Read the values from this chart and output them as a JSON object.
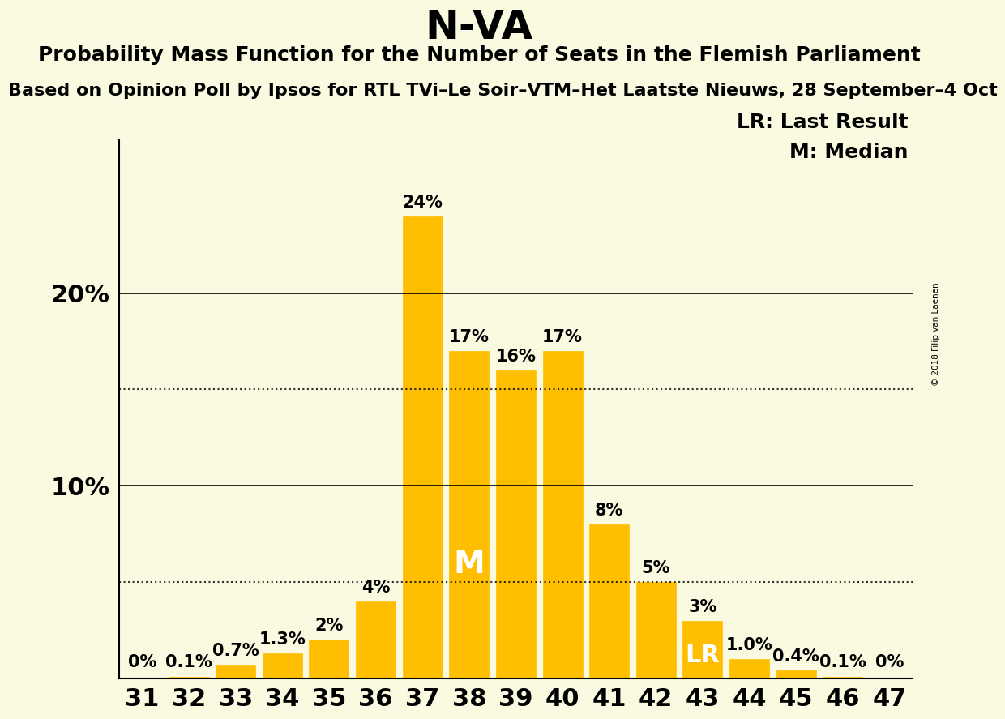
{
  "title": "N-VA",
  "subtitle": "Probability Mass Function for the Number of Seats in the Flemish Parliament",
  "subtitle2": "Based on Opinion Poll by Ipsos for RTL TVi–Le Soir–VTM–Het Laatste Nieuws, 28 September–4 Oct",
  "copyright": "© 2018 Filip van Laenen",
  "categories": [
    31,
    32,
    33,
    34,
    35,
    36,
    37,
    38,
    39,
    40,
    41,
    42,
    43,
    44,
    45,
    46,
    47
  ],
  "values": [
    0.0,
    0.1,
    0.7,
    1.3,
    2.0,
    4.0,
    24.0,
    17.0,
    16.0,
    17.0,
    8.0,
    5.0,
    3.0,
    1.0,
    0.4,
    0.1,
    0.0
  ],
  "labels": [
    "0%",
    "0.1%",
    "0.7%",
    "1.3%",
    "2%",
    "4%",
    "24%",
    "17%",
    "16%",
    "17%",
    "8%",
    "5%",
    "3%",
    "1.0%",
    "0.4%",
    "0.1%",
    "0%"
  ],
  "bar_color": "#FFBF00",
  "background_color": "#FAFAE0",
  "median_seat": 38,
  "lr_seat": 43,
  "dotted_lines": [
    5.0,
    15.0
  ],
  "solid_lines": [
    10.0,
    20.0
  ],
  "ylim": [
    0,
    28
  ],
  "title_fontsize": 36,
  "subtitle_fontsize": 18,
  "subtitle2_fontsize": 16,
  "ylabel_fontsize": 22,
  "bar_label_fontsize": 15,
  "xtick_fontsize": 22,
  "legend_fontsize": 18,
  "M_fontsize": 28,
  "LR_fontsize": 22
}
